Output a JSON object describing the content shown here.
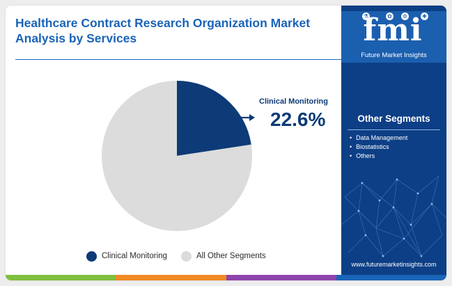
{
  "title": "Healthcare Contract Research Organization Market Analysis by Services",
  "chart_data": {
    "type": "pie",
    "slices": [
      {
        "name": "Clinical Monitoring",
        "value": 22.6,
        "color": "#0d3b77"
      },
      {
        "name": "All Other Segments",
        "value": 77.4,
        "color": "#dcdcdc"
      }
    ],
    "legend_position": "bottom",
    "callout": {
      "label": "Clinical Monitoring",
      "value": "22.6%"
    }
  },
  "legend": [
    {
      "label": "Clinical Monitoring",
      "color": "#0d3b77"
    },
    {
      "label": "All Other Segments",
      "color": "#dcdcdc"
    }
  ],
  "sidebar": {
    "logo_mark": "fmi",
    "logo_text": "Future Market Insights",
    "segments_title": "Other Segments",
    "segments": [
      "Data Management",
      "Biostatistics",
      "Others"
    ],
    "url": "www.futuremarketinsights.com"
  },
  "bottom_bar_colors": [
    "#7fbf3f",
    "#f08a24",
    "#8e44ad",
    "#1a64b8"
  ]
}
